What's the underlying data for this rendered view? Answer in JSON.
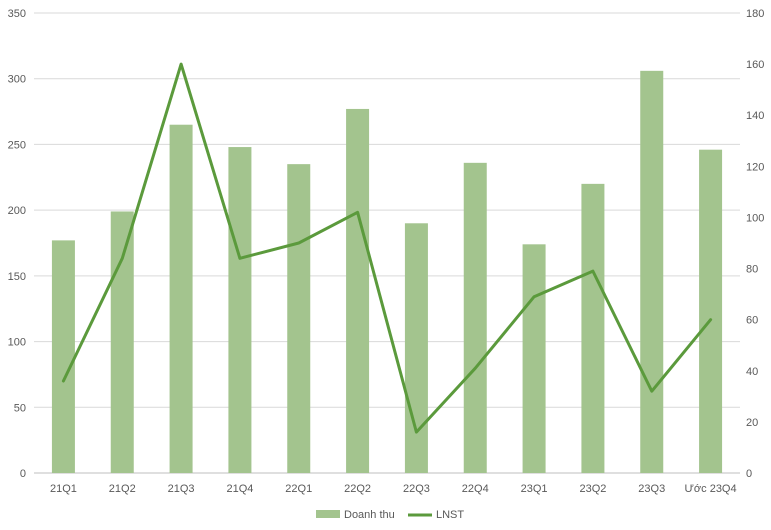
{
  "chart_data": {
    "type": "bar",
    "categories": [
      "21Q1",
      "21Q2",
      "21Q3",
      "21Q4",
      "22Q1",
      "22Q2",
      "22Q3",
      "22Q4",
      "23Q1",
      "23Q2",
      "23Q3",
      "Ước 23Q4"
    ],
    "series": [
      {
        "name": "Doanh thu",
        "type": "bar",
        "axis": "left",
        "color": "#a3c48e",
        "values": [
          177,
          199,
          265,
          248,
          235,
          277,
          190,
          236,
          174,
          220,
          306,
          246
        ]
      },
      {
        "name": "LNST",
        "type": "line",
        "axis": "right",
        "color": "#5b9a3c",
        "values": [
          36,
          84,
          160,
          84,
          90,
          102,
          16,
          41,
          69,
          79,
          32,
          60
        ]
      }
    ],
    "y_left": {
      "min": 0,
      "max": 350,
      "step": 50,
      "ticks": [
        "0",
        "50",
        "100",
        "150",
        "200",
        "250",
        "300",
        "350"
      ]
    },
    "y_right": {
      "min": 0,
      "max": 180,
      "step": 20,
      "ticks": [
        "0",
        "20",
        "40",
        "60",
        "80",
        "100",
        "120",
        "140",
        "160",
        "180"
      ]
    },
    "grid": true,
    "legend_position": "bottom"
  }
}
